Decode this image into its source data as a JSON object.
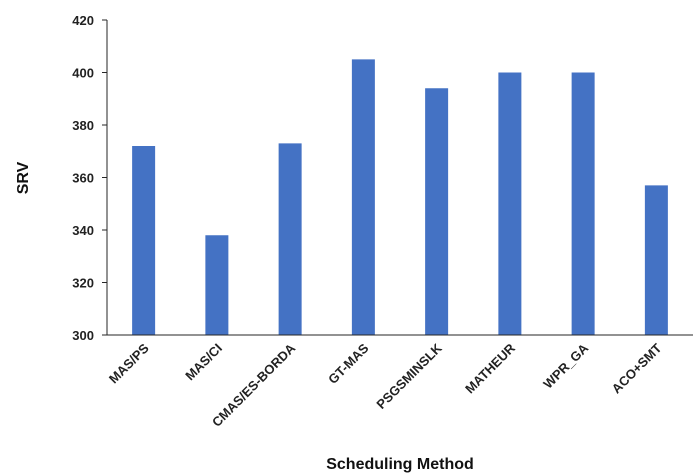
{
  "chart_data": {
    "type": "bar",
    "title": "",
    "xlabel": "Scheduling Method",
    "ylabel": "SRV",
    "categories": [
      "MAS/PS",
      "MAS/CI",
      "CMAS/ES-BORDA",
      "GT-MAS",
      "PSGSMINSLK",
      "MATHEUR",
      "WPR_GA",
      "ACO+SMT"
    ],
    "values": [
      372,
      338,
      373,
      405,
      394,
      400,
      400,
      357
    ],
    "ylim": [
      300,
      420
    ],
    "yticks": [
      300,
      320,
      340,
      360,
      380,
      400,
      420
    ],
    "grid": false,
    "legend": "none",
    "bar_color": "#4472C4"
  }
}
